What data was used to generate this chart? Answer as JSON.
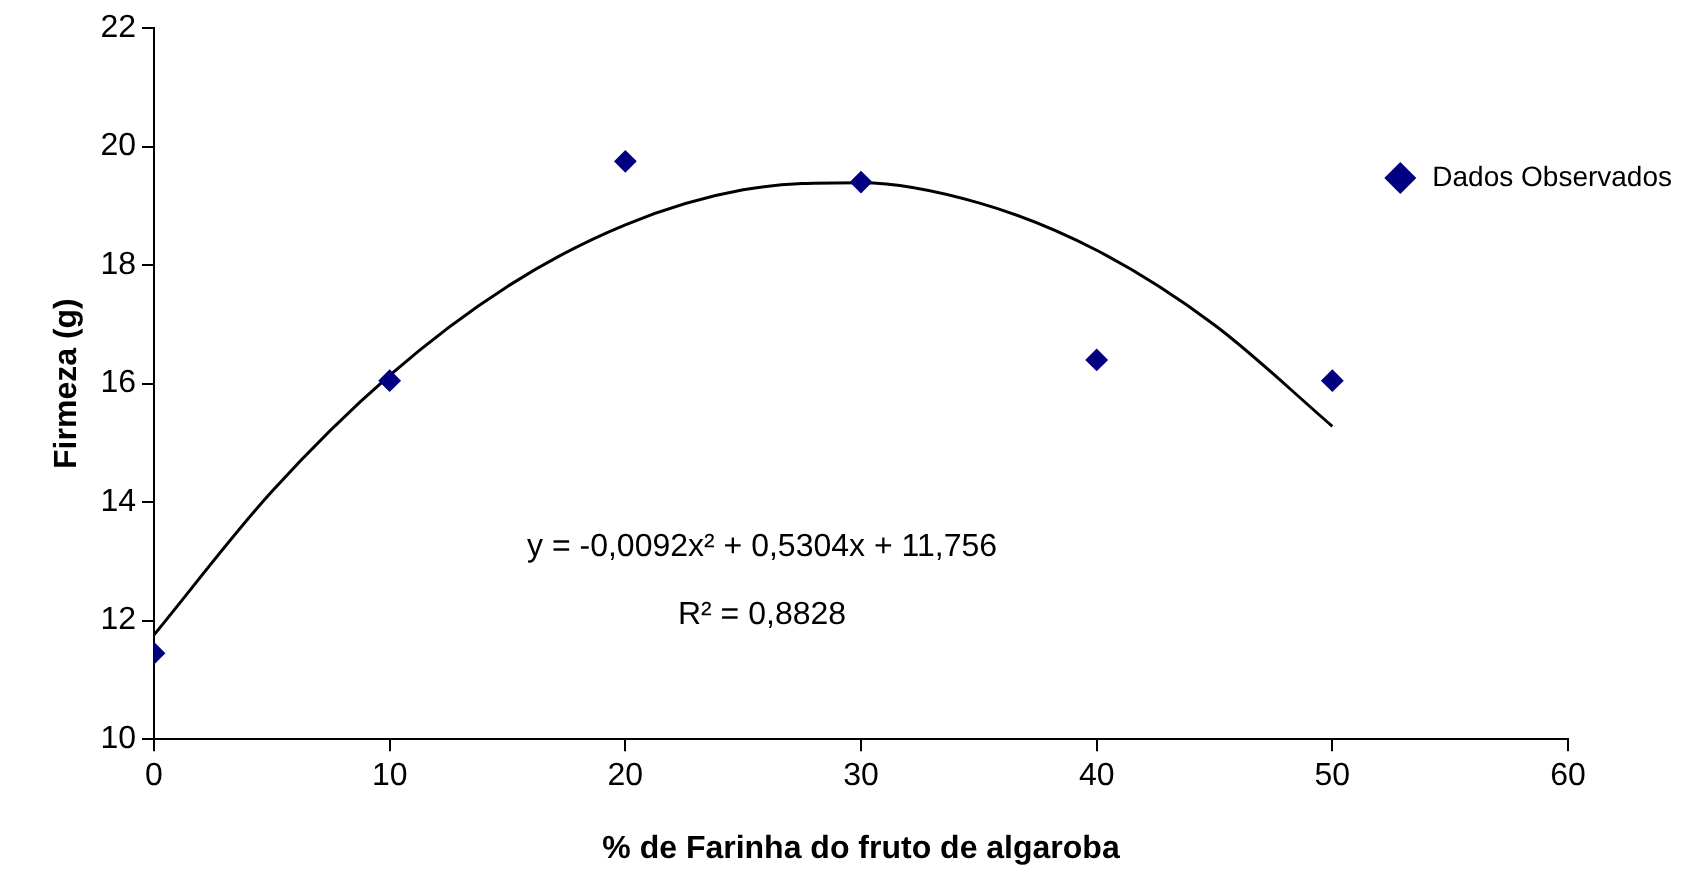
{
  "chart_data": {
    "type": "scatter",
    "xlabel": "% de Farinha do fruto de algaroba",
    "ylabel": "Firmeza (g)",
    "xlim": [
      0,
      60
    ],
    "xticks": [
      0,
      10,
      20,
      30,
      40,
      50,
      60
    ],
    "ylim": [
      10,
      22
    ],
    "yticks": [
      10,
      12,
      14,
      16,
      18,
      20,
      22
    ],
    "grid": false,
    "legend": "top right",
    "marker": "diamond",
    "series": [
      {
        "name": "Dados Observados",
        "color": "#000080",
        "x": [
          0,
          10,
          20,
          30,
          40,
          50
        ],
        "values": [
          11.45,
          16.05,
          19.75,
          19.4,
          16.4,
          16.05
        ]
      },
      {
        "color": "#000000",
        "type": "line",
        "marker": "none",
        "x": [
          0,
          5,
          10,
          15,
          20,
          25,
          30,
          35,
          40,
          45,
          50
        ],
        "values": [
          11.76,
          14.18,
          16.14,
          17.64,
          18.68,
          19.27,
          19.39,
          19.05,
          18.25,
          16.99,
          15.28
        ]
      }
    ],
    "annotations": [
      "y = -0,0092x² + 0,5304x + 11,756",
      "R² = 0,8828"
    ]
  }
}
